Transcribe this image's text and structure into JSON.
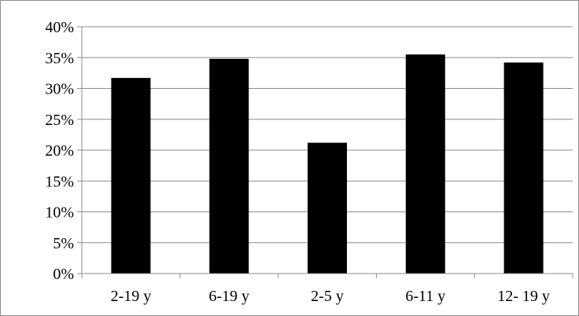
{
  "chart_data": {
    "type": "bar",
    "title": "",
    "xlabel": "",
    "ylabel": "",
    "categories": [
      "2-19 y",
      "6-19 y",
      "2-5 y",
      "6-11 y",
      "12- 19 y"
    ],
    "values": [
      31.7,
      34.8,
      21.2,
      35.5,
      34.2
    ],
    "ylim": [
      0,
      40
    ],
    "y_ticks": [
      0,
      5,
      10,
      15,
      20,
      25,
      30,
      35,
      40
    ],
    "y_tick_labels": [
      "0%",
      "5%",
      "10%",
      "15%",
      "20%",
      "25%",
      "30%",
      "35%",
      "40%"
    ],
    "grid": true,
    "legend": "none",
    "colors": {
      "bar": "#000000",
      "grid": "#8c8c8c",
      "axis": "#8c8c8c"
    }
  }
}
